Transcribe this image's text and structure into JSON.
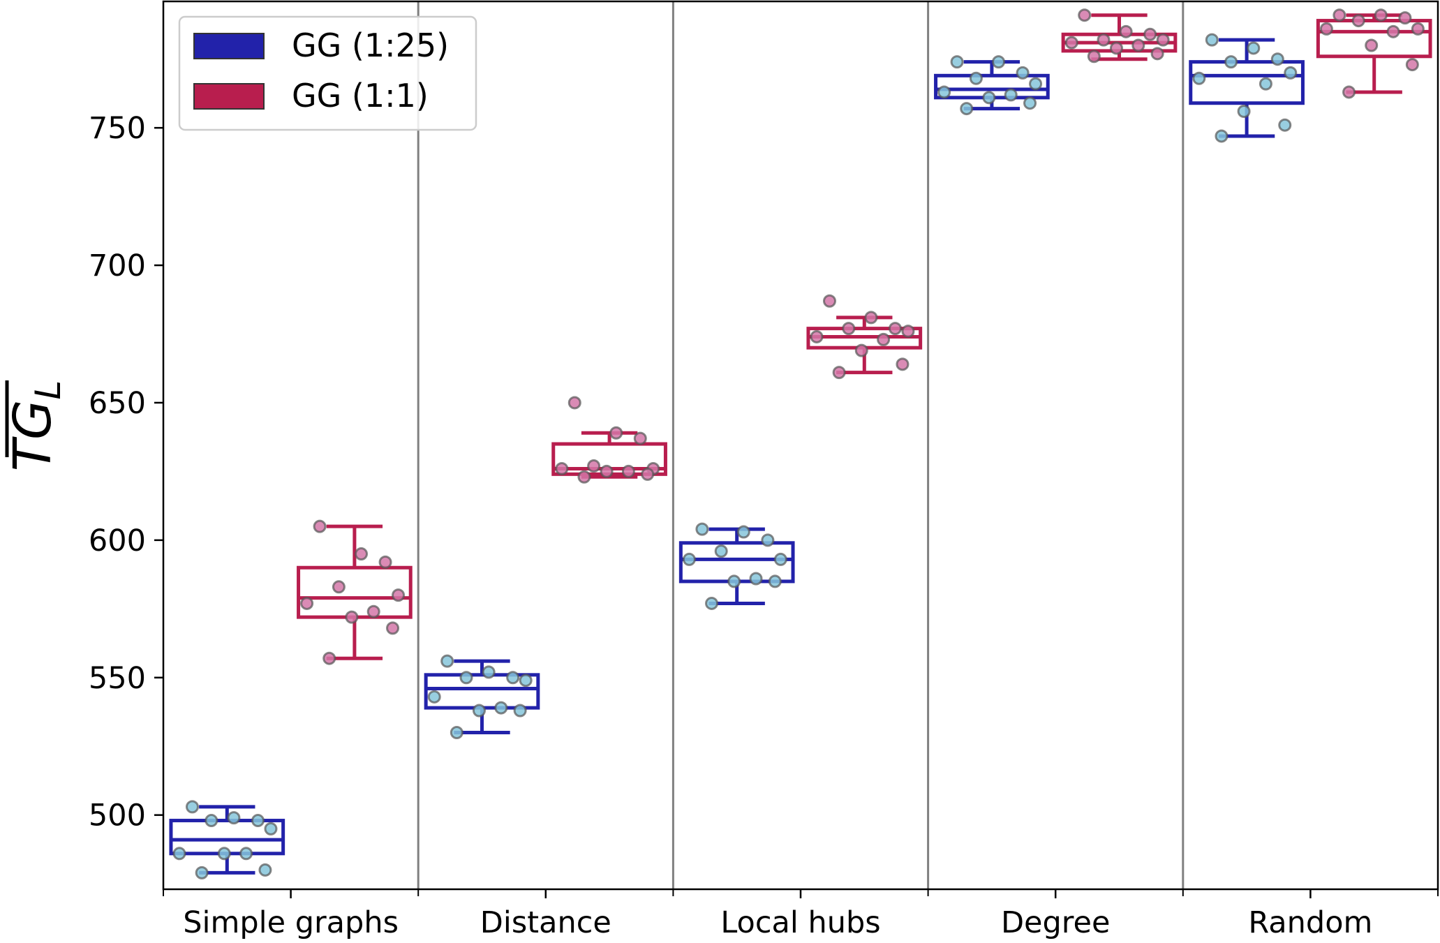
{
  "chart_data": {
    "type": "boxplot",
    "title": "",
    "xlabel": "",
    "ylabel": "TG",
    "ylabel_subscript": "L",
    "ylim": [
      473,
      796
    ],
    "yticks": [
      500,
      550,
      600,
      650,
      700,
      750
    ],
    "categories": [
      "Simple graphs",
      "Distance",
      "Local hubs",
      "Degree",
      "Random"
    ],
    "legend_position": "top-left",
    "grid": false,
    "colors": {
      "gg_1_25_box": "#2222aa",
      "gg_1_25_points": "#86c5da",
      "gg_1_1_box": "#b81e4e",
      "gg_1_1_points": "#d477a8",
      "separator": "#808080"
    },
    "series": [
      {
        "name": "GG (1:25)",
        "color": "#2222aa",
        "boxes": [
          {
            "whisker_low": 479,
            "q1": 486,
            "median": 491,
            "q3": 498,
            "whisker_high": 503
          },
          {
            "whisker_low": 530,
            "q1": 539,
            "median": 546,
            "q3": 551,
            "whisker_high": 556
          },
          {
            "whisker_low": 577,
            "q1": 585,
            "median": 593,
            "q3": 599,
            "whisker_high": 604
          },
          {
            "whisker_low": 757,
            "q1": 761,
            "median": 764,
            "q3": 769,
            "whisker_high": 774
          },
          {
            "whisker_low": 747,
            "q1": 759,
            "median": 769,
            "q3": 774,
            "whisker_high": 782
          }
        ],
        "points": [
          [
            503,
            499,
            498,
            498,
            495,
            486,
            486,
            486,
            480,
            479
          ],
          [
            556,
            552,
            550,
            550,
            549,
            543,
            539,
            538,
            538,
            530
          ],
          [
            604,
            603,
            600,
            596,
            593,
            593,
            586,
            585,
            585,
            577
          ],
          [
            774,
            774,
            770,
            768,
            766,
            763,
            762,
            761,
            759,
            757
          ],
          [
            782,
            779,
            775,
            774,
            770,
            768,
            766,
            756,
            751,
            747
          ]
        ]
      },
      {
        "name": "GG (1:1)",
        "color": "#b81e4e",
        "boxes": [
          {
            "whisker_low": 557,
            "q1": 572,
            "median": 579,
            "q3": 590,
            "whisker_high": 605
          },
          {
            "whisker_low": 623,
            "q1": 624,
            "median": 626,
            "q3": 635,
            "whisker_high": 639
          },
          {
            "whisker_low": 661,
            "q1": 670,
            "median": 674,
            "q3": 677,
            "whisker_high": 681
          },
          {
            "whisker_low": 775,
            "q1": 778,
            "median": 781,
            "q3": 784,
            "whisker_high": 791
          },
          {
            "whisker_low": 763,
            "q1": 776,
            "median": 785,
            "q3": 789,
            "whisker_high": 791
          }
        ],
        "points": [
          [
            605,
            595,
            592,
            583,
            580,
            577,
            574,
            572,
            568,
            557
          ],
          [
            650,
            639,
            637,
            627,
            626,
            626,
            625,
            625,
            624,
            623
          ],
          [
            687,
            681,
            677,
            677,
            676,
            674,
            673,
            669,
            664,
            661
          ],
          [
            791,
            785,
            784,
            782,
            782,
            781,
            780,
            779,
            777,
            776
          ],
          [
            791,
            791,
            790,
            789,
            786,
            786,
            785,
            780,
            773,
            763
          ]
        ]
      }
    ]
  }
}
